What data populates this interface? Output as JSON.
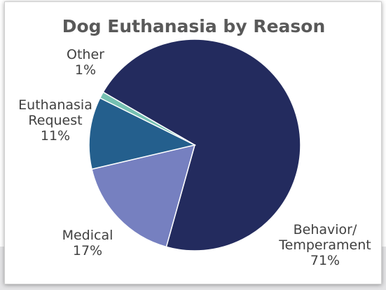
{
  "chart_data": {
    "type": "pie",
    "title": "Dog Euthanasia by Reason",
    "slices": [
      {
        "label_lines": [
          "Behavior/",
          "Temperament"
        ],
        "value": 71,
        "percent_label": "71%",
        "color": "#232b5e"
      },
      {
        "label_lines": [
          "Medical"
        ],
        "value": 17,
        "percent_label": "17%",
        "color": "#7680c0"
      },
      {
        "label_lines": [
          "Euthanasia",
          "Request"
        ],
        "value": 11,
        "percent_label": "11%",
        "color": "#245f8d"
      },
      {
        "label_lines": [
          "Other"
        ],
        "value": 1,
        "percent_label": "1%",
        "color": "#76c1b2"
      }
    ],
    "legend": "none"
  }
}
